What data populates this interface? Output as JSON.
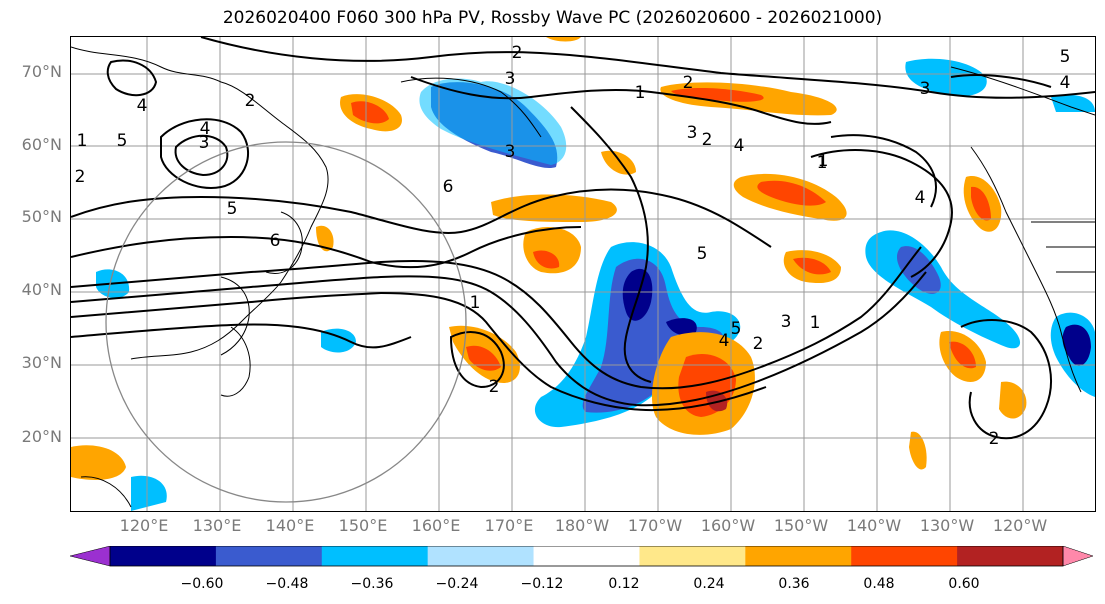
{
  "title": "2026020400 F060 300 hPa PV, Rossby Wave PC (2026020600 - 2026021000)",
  "lat_labels": [
    "70°N",
    "60°N",
    "50°N",
    "40°N",
    "30°N",
    "20°N"
  ],
  "lon_labels": [
    "120°E",
    "130°E",
    "140°E",
    "150°E",
    "160°E",
    "170°E",
    "180°W",
    "170°W",
    "160°W",
    "150°W",
    "140°W",
    "130°W",
    "120°W"
  ],
  "colorbar": {
    "ticks": [
      "−0.60",
      "−0.48",
      "−0.36",
      "−0.24",
      "−0.12",
      "0.12",
      "0.24",
      "0.36",
      "0.48",
      "0.60"
    ],
    "colors": [
      "#9b30d0",
      "#00008b",
      "#3a5bcf",
      "#00bfff",
      "#b0e2ff",
      "#ffffff",
      "#ffe88a",
      "#ffa500",
      "#ff4500",
      "#b22222",
      "#ff88aa"
    ]
  },
  "contour_labels": [
    "2",
    "3",
    "4",
    "5",
    "1",
    "1",
    "2",
    "3",
    "4",
    "5",
    "6",
    "1",
    "2",
    "3",
    "4",
    "5",
    "6",
    "1",
    "2",
    "3",
    "4",
    "5",
    "1",
    "2",
    "4",
    "2",
    "3",
    "4",
    "5",
    "3",
    "2",
    "1",
    "2"
  ]
}
